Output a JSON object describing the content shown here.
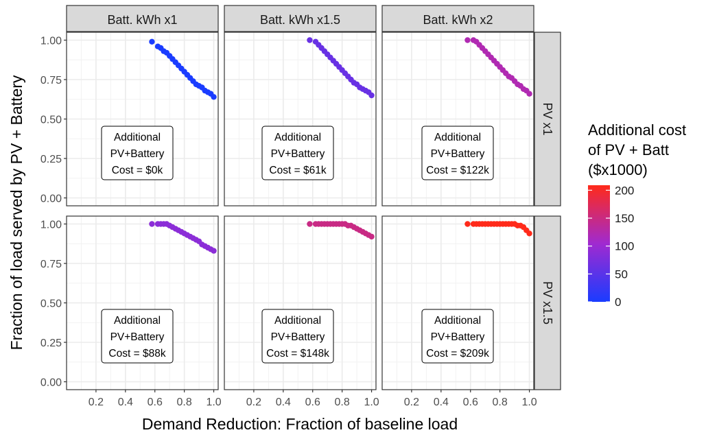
{
  "chart_data": {
    "type": "scatter",
    "xlabel": "Demand Reduction: Fraction of baseline load",
    "ylabel": "Fraction of load served by PV + Battery",
    "xlim": [
      0.0,
      1.03
    ],
    "ylim": [
      -0.05,
      1.05
    ],
    "x_ticks": [
      0.2,
      0.4,
      0.6,
      0.8,
      1.0
    ],
    "x_tick_labels": [
      "0.2",
      "0.4",
      "0.6",
      "0.8",
      "1.0"
    ],
    "y_ticks": [
      0.0,
      0.25,
      0.5,
      0.75,
      1.0
    ],
    "y_tick_labels": [
      "0.00",
      "0.25",
      "0.50",
      "0.75",
      "1.00"
    ],
    "grid": true,
    "column_facets": [
      "Batt. kWh x1",
      "Batt. kWh x1.5",
      "Batt. kWh x2"
    ],
    "row_facets": [
      "PV x1",
      "PV x1.5"
    ],
    "legend": {
      "title_lines": [
        "Additional cost",
        "of PV + Batt",
        "($x1000)"
      ],
      "range": [
        0,
        209
      ],
      "ticks": [
        0,
        50,
        100,
        150,
        200
      ],
      "tick_labels": [
        "0",
        "50",
        "100",
        "150",
        "200"
      ],
      "low_color": "#1a3cff",
      "high_color": "#ff2a1a",
      "placement": "right"
    },
    "panels": [
      {
        "row": 0,
        "col": 0,
        "cost": 0,
        "label_lines": [
          "Additional",
          "PV+Battery",
          "Cost = $0k"
        ],
        "x": [
          0.58,
          0.62,
          0.64,
          0.66,
          0.68,
          0.7,
          0.72,
          0.74,
          0.76,
          0.78,
          0.8,
          0.82,
          0.84,
          0.86,
          0.88,
          0.9,
          0.92,
          0.94,
          0.96,
          0.98,
          1.0
        ],
        "y": [
          0.99,
          0.96,
          0.95,
          0.93,
          0.92,
          0.9,
          0.88,
          0.86,
          0.84,
          0.82,
          0.8,
          0.78,
          0.76,
          0.74,
          0.72,
          0.71,
          0.7,
          0.68,
          0.67,
          0.66,
          0.64
        ]
      },
      {
        "row": 0,
        "col": 1,
        "cost": 61,
        "label_lines": [
          "Additional",
          "PV+Battery",
          "Cost = $61k"
        ],
        "x": [
          0.58,
          0.62,
          0.64,
          0.66,
          0.68,
          0.7,
          0.72,
          0.74,
          0.76,
          0.78,
          0.8,
          0.82,
          0.84,
          0.86,
          0.88,
          0.9,
          0.92,
          0.94,
          0.96,
          0.98,
          1.0
        ],
        "y": [
          1.0,
          0.99,
          0.97,
          0.95,
          0.93,
          0.91,
          0.89,
          0.87,
          0.85,
          0.83,
          0.81,
          0.79,
          0.77,
          0.75,
          0.73,
          0.72,
          0.7,
          0.69,
          0.68,
          0.67,
          0.65
        ]
      },
      {
        "row": 0,
        "col": 2,
        "cost": 122,
        "label_lines": [
          "Additional",
          "PV+Battery",
          "Cost = $122k"
        ],
        "x": [
          0.58,
          0.62,
          0.64,
          0.66,
          0.68,
          0.7,
          0.72,
          0.74,
          0.76,
          0.78,
          0.8,
          0.82,
          0.84,
          0.86,
          0.88,
          0.9,
          0.92,
          0.94,
          0.96,
          0.98,
          1.0
        ],
        "y": [
          1.0,
          1.0,
          0.99,
          0.97,
          0.95,
          0.93,
          0.91,
          0.89,
          0.87,
          0.85,
          0.83,
          0.81,
          0.79,
          0.77,
          0.76,
          0.74,
          0.72,
          0.71,
          0.69,
          0.68,
          0.66
        ]
      },
      {
        "row": 1,
        "col": 0,
        "cost": 88,
        "label_lines": [
          "Additional",
          "PV+Battery",
          "Cost = $88k"
        ],
        "x": [
          0.58,
          0.62,
          0.64,
          0.66,
          0.68,
          0.7,
          0.72,
          0.74,
          0.76,
          0.78,
          0.8,
          0.82,
          0.84,
          0.86,
          0.88,
          0.9,
          0.92,
          0.94,
          0.96,
          0.98,
          1.0
        ],
        "y": [
          1.0,
          1.0,
          1.0,
          1.0,
          1.0,
          0.99,
          0.98,
          0.97,
          0.96,
          0.95,
          0.94,
          0.93,
          0.92,
          0.91,
          0.9,
          0.89,
          0.87,
          0.86,
          0.85,
          0.84,
          0.83
        ]
      },
      {
        "row": 1,
        "col": 1,
        "cost": 148,
        "label_lines": [
          "Additional",
          "PV+Battery",
          "Cost = $148k"
        ],
        "x": [
          0.58,
          0.62,
          0.64,
          0.66,
          0.68,
          0.7,
          0.72,
          0.74,
          0.76,
          0.78,
          0.8,
          0.82,
          0.84,
          0.86,
          0.88,
          0.9,
          0.92,
          0.94,
          0.96,
          0.98,
          1.0
        ],
        "y": [
          1.0,
          1.0,
          1.0,
          1.0,
          1.0,
          1.0,
          1.0,
          1.0,
          1.0,
          1.0,
          1.0,
          1.0,
          0.99,
          0.99,
          0.98,
          0.97,
          0.96,
          0.95,
          0.94,
          0.93,
          0.92
        ]
      },
      {
        "row": 1,
        "col": 2,
        "cost": 209,
        "label_lines": [
          "Additional",
          "PV+Battery",
          "Cost = $209k"
        ],
        "x": [
          0.58,
          0.62,
          0.64,
          0.66,
          0.68,
          0.7,
          0.72,
          0.74,
          0.76,
          0.78,
          0.8,
          0.82,
          0.84,
          0.86,
          0.88,
          0.9,
          0.92,
          0.94,
          0.96,
          0.98,
          1.0
        ],
        "y": [
          1.0,
          1.0,
          1.0,
          1.0,
          1.0,
          1.0,
          1.0,
          1.0,
          1.0,
          1.0,
          1.0,
          1.0,
          1.0,
          1.0,
          1.0,
          1.0,
          0.99,
          0.99,
          0.98,
          0.96,
          0.94
        ]
      }
    ]
  }
}
